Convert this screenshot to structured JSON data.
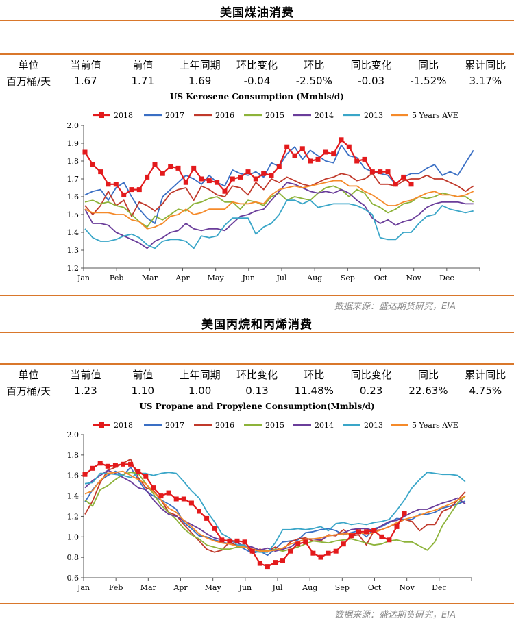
{
  "sections": [
    {
      "title": "美国煤油消费",
      "stats": {
        "headers": [
          "单位",
          "当前值",
          "前值",
          "上年同期",
          "环比变化",
          "环比",
          "同比变化",
          "同比",
          "累计同比"
        ],
        "values": [
          "百万桶/天",
          "1.67",
          "1.71",
          "1.69",
          "-0.04",
          "-2.50%",
          "-0.03",
          "-1.52%",
          "3.17%"
        ]
      },
      "source": "数据来源：盛达期货研究，EIA"
    },
    {
      "title": "美国丙烷和丙烯消费",
      "stats": {
        "headers": [
          "单位",
          "当前值",
          "前值",
          "上年同期",
          "环比变化",
          "环比",
          "同比变化",
          "同比",
          "累计同比"
        ],
        "values": [
          "百万桶/天",
          "1.23",
          "1.10",
          "1.00",
          "0.13",
          "11.48%",
          "0.23",
          "22.63%",
          "4.75%"
        ]
      },
      "source": "数据来源：盛达期货研究，EIA"
    }
  ],
  "colors": {
    "accent": "#d9772b",
    "2018": "#e31a1c",
    "2017": "#3a6fc4",
    "2016": "#c0392b",
    "2015": "#8db33a",
    "2014": "#6a3d9a",
    "2013": "#3aa6c8",
    "ave": "#f58a2a"
  },
  "chart_data": [
    {
      "type": "line",
      "title": "US Kerosene Consumption (Mmbls/d)",
      "x_ticks": [
        "Jan",
        "Feb",
        "Mar",
        "Apr",
        "May",
        "Jun",
        "Jul",
        "Aug",
        "Sep",
        "Oct",
        "Nov",
        "Dec"
      ],
      "ylim": [
        1.2,
        2.0
      ],
      "y_ticks": [
        "1.2",
        "1.3",
        "1.4",
        "1.5",
        "1.6",
        "1.7",
        "1.8",
        "1.9",
        "2.0"
      ],
      "grid": false,
      "legend": "top",
      "series": [
        {
          "name": "2018",
          "markers": true,
          "values": [
            1.85,
            1.78,
            1.74,
            1.67,
            1.67,
            1.61,
            1.64,
            1.64,
            1.71,
            1.78,
            1.73,
            1.77,
            1.76,
            1.68,
            1.76,
            1.7,
            1.69,
            1.68,
            1.63,
            1.7,
            1.71,
            1.74,
            1.7,
            1.73,
            1.72,
            1.77,
            1.88,
            1.83,
            1.87,
            1.8,
            1.81,
            1.85,
            1.84,
            1.92,
            1.88,
            1.8,
            1.81,
            1.74,
            1.74,
            1.74,
            1.67,
            1.71,
            1.67
          ]
        },
        {
          "name": "2017",
          "values": [
            1.61,
            1.63,
            1.64,
            1.58,
            1.65,
            1.68,
            1.6,
            1.53,
            1.48,
            1.45,
            1.6,
            1.64,
            1.68,
            1.72,
            1.7,
            1.67,
            1.72,
            1.68,
            1.66,
            1.75,
            1.73,
            1.72,
            1.74,
            1.71,
            1.79,
            1.77,
            1.84,
            1.88,
            1.81,
            1.86,
            1.83,
            1.8,
            1.79,
            1.89,
            1.83,
            1.82,
            1.76,
            1.74,
            1.73,
            1.72,
            1.67,
            1.71,
            1.73,
            1.73,
            1.76,
            1.78,
            1.72,
            1.74,
            1.72,
            1.79,
            1.86
          ]
        },
        {
          "name": "2016",
          "values": [
            1.55,
            1.5,
            1.55,
            1.63,
            1.55,
            1.58,
            1.49,
            1.57,
            1.55,
            1.52,
            1.56,
            1.62,
            1.64,
            1.65,
            1.58,
            1.66,
            1.64,
            1.61,
            1.6,
            1.66,
            1.65,
            1.61,
            1.68,
            1.64,
            1.7,
            1.68,
            1.71,
            1.69,
            1.67,
            1.66,
            1.68,
            1.7,
            1.71,
            1.73,
            1.72,
            1.69,
            1.7,
            1.73,
            1.67,
            1.67,
            1.66,
            1.69,
            1.7,
            1.7,
            1.72,
            1.7,
            1.7,
            1.68,
            1.66,
            1.63,
            1.66
          ]
        },
        {
          "name": "2015",
          "values": [
            1.57,
            1.58,
            1.56,
            1.57,
            1.55,
            1.54,
            1.5,
            1.46,
            1.43,
            1.49,
            1.47,
            1.5,
            1.53,
            1.52,
            1.56,
            1.57,
            1.59,
            1.6,
            1.57,
            1.57,
            1.53,
            1.58,
            1.57,
            1.55,
            1.6,
            1.62,
            1.58,
            1.6,
            1.59,
            1.58,
            1.62,
            1.65,
            1.66,
            1.64,
            1.6,
            1.64,
            1.62,
            1.56,
            1.54,
            1.51,
            1.53,
            1.56,
            1.57,
            1.6,
            1.59,
            1.6,
            1.62,
            1.61,
            1.6,
            1.6,
            1.57
          ]
        },
        {
          "name": "2014",
          "values": [
            1.53,
            1.45,
            1.45,
            1.44,
            1.4,
            1.38,
            1.36,
            1.34,
            1.31,
            1.35,
            1.37,
            1.4,
            1.41,
            1.45,
            1.42,
            1.41,
            1.42,
            1.42,
            1.41,
            1.45,
            1.49,
            1.5,
            1.52,
            1.53,
            1.58,
            1.63,
            1.68,
            1.67,
            1.65,
            1.63,
            1.62,
            1.63,
            1.62,
            1.64,
            1.62,
            1.58,
            1.55,
            1.48,
            1.45,
            1.47,
            1.44,
            1.46,
            1.47,
            1.5,
            1.54,
            1.56,
            1.57,
            1.57,
            1.57,
            1.56,
            1.56
          ]
        },
        {
          "name": "2013",
          "values": [
            1.42,
            1.37,
            1.35,
            1.35,
            1.36,
            1.38,
            1.39,
            1.37,
            1.33,
            1.31,
            1.35,
            1.36,
            1.36,
            1.35,
            1.31,
            1.38,
            1.37,
            1.38,
            1.44,
            1.48,
            1.48,
            1.48,
            1.39,
            1.43,
            1.45,
            1.5,
            1.58,
            1.58,
            1.56,
            1.58,
            1.54,
            1.55,
            1.56,
            1.56,
            1.56,
            1.55,
            1.53,
            1.5,
            1.37,
            1.36,
            1.36,
            1.4,
            1.4,
            1.45,
            1.49,
            1.5,
            1.55,
            1.53,
            1.52,
            1.51,
            1.52
          ]
        },
        {
          "name": "5 Years AVE",
          "values": [
            1.53,
            1.51,
            1.51,
            1.51,
            1.5,
            1.5,
            1.47,
            1.46,
            1.42,
            1.43,
            1.45,
            1.49,
            1.5,
            1.53,
            1.5,
            1.51,
            1.53,
            1.53,
            1.53,
            1.57,
            1.56,
            1.56,
            1.57,
            1.56,
            1.61,
            1.64,
            1.65,
            1.66,
            1.65,
            1.66,
            1.67,
            1.68,
            1.69,
            1.69,
            1.66,
            1.66,
            1.63,
            1.61,
            1.58,
            1.55,
            1.55,
            1.57,
            1.58,
            1.6,
            1.62,
            1.63,
            1.61,
            1.61,
            1.6,
            1.61,
            1.63
          ]
        }
      ]
    },
    {
      "type": "line",
      "title": "US Propane and Propylene Consumption(Mmbls/d)",
      "x_ticks": [
        "Jan",
        "Feb",
        "Mar",
        "Apr",
        "May",
        "Jun",
        "Jul",
        "Aug",
        "Sep",
        "Oct",
        "Nov",
        "Dec"
      ],
      "ylim": [
        0.6,
        2.0
      ],
      "y_ticks": [
        "0.6",
        "0.8",
        "1.0",
        "1.2",
        "1.4",
        "1.6",
        "1.8",
        "2.0"
      ],
      "grid": false,
      "legend": "top",
      "series": [
        {
          "name": "2018",
          "markers": true,
          "values": [
            1.61,
            1.67,
            1.72,
            1.69,
            1.7,
            1.71,
            1.71,
            1.64,
            1.59,
            1.48,
            1.4,
            1.43,
            1.37,
            1.37,
            1.33,
            1.25,
            1.18,
            1.08,
            0.97,
            0.96,
            0.96,
            0.95,
            0.86,
            0.74,
            0.71,
            0.75,
            0.77,
            0.86,
            0.93,
            0.95,
            0.84,
            0.8,
            0.84,
            0.86,
            0.93,
            1.01,
            1.05,
            1.05,
            1.06,
            1.0,
            0.97,
            1.1,
            1.23
          ]
        },
        {
          "name": "2017",
          "values": [
            1.34,
            1.46,
            1.55,
            1.6,
            1.64,
            1.6,
            1.68,
            1.56,
            1.45,
            1.4,
            1.36,
            1.32,
            1.27,
            1.14,
            1.08,
            1.01,
            1.0,
            0.97,
            0.95,
            0.93,
            0.92,
            0.88,
            0.84,
            0.86,
            0.82,
            0.88,
            0.95,
            0.96,
            0.97,
            1.04,
            1.05,
            1.07,
            1.08,
            1.06,
            1.02,
            1.04,
            1.06,
            1.0,
            1.08,
            1.1,
            1.14,
            1.18,
            1.17,
            1.17,
            1.22,
            1.22,
            1.24,
            1.28,
            1.3,
            1.32,
            1.35
          ]
        },
        {
          "name": "2016",
          "values": [
            1.22,
            1.35,
            1.53,
            1.65,
            1.68,
            1.72,
            1.76,
            1.58,
            1.48,
            1.45,
            1.36,
            1.24,
            1.21,
            1.12,
            1.04,
            0.96,
            0.88,
            0.85,
            0.87,
            0.95,
            0.91,
            0.92,
            0.84,
            0.88,
            0.86,
            0.9,
            0.87,
            0.95,
            0.98,
            0.99,
            0.96,
            0.96,
            1.02,
            1.01,
            1.07,
            1.01,
            1.02,
            0.92,
            1.06,
            1.07,
            1.1,
            1.13,
            1.17,
            1.15,
            1.06,
            1.12,
            1.12,
            1.25,
            1.28,
            1.36,
            1.44
          ]
        },
        {
          "name": "2015",
          "values": [
            1.36,
            1.3,
            1.46,
            1.5,
            1.56,
            1.61,
            1.63,
            1.62,
            1.52,
            1.42,
            1.31,
            1.24,
            1.17,
            1.08,
            1.02,
            0.98,
            0.92,
            0.9,
            0.88,
            0.88,
            0.9,
            0.9,
            0.88,
            0.87,
            0.86,
            0.88,
            0.86,
            0.88,
            0.9,
            0.93,
            0.96,
            0.95,
            0.94,
            0.96,
            0.97,
            0.98,
            0.96,
            0.94,
            0.92,
            0.93,
            0.96,
            0.97,
            0.95,
            0.95,
            0.91,
            0.87,
            0.95,
            1.11,
            1.22,
            1.33,
            1.4
          ]
        },
        {
          "name": "2014",
          "values": [
            1.48,
            1.55,
            1.6,
            1.65,
            1.62,
            1.58,
            1.54,
            1.48,
            1.46,
            1.36,
            1.28,
            1.22,
            1.2,
            1.16,
            1.12,
            1.08,
            1.03,
            0.99,
            0.97,
            0.96,
            0.94,
            0.91,
            0.9,
            0.87,
            0.89,
            0.86,
            0.88,
            0.9,
            0.95,
            0.98,
            0.98,
            0.97,
            1.01,
            1.02,
            1.04,
            1.07,
            1.08,
            1.08,
            1.06,
            1.11,
            1.15,
            1.16,
            1.2,
            1.24,
            1.27,
            1.27,
            1.3,
            1.33,
            1.35,
            1.38,
            1.32
          ]
        },
        {
          "name": "2013",
          "values": [
            1.52,
            1.53,
            1.62,
            1.62,
            1.61,
            1.6,
            1.58,
            1.62,
            1.62,
            1.6,
            1.62,
            1.63,
            1.62,
            1.54,
            1.45,
            1.38,
            1.25,
            1.15,
            1.03,
            0.99,
            0.92,
            0.92,
            0.86,
            0.85,
            0.85,
            0.94,
            1.07,
            1.07,
            1.08,
            1.07,
            1.08,
            1.1,
            1.06,
            1.13,
            1.14,
            1.12,
            1.13,
            1.12,
            1.14,
            1.15,
            1.17,
            1.26,
            1.36,
            1.48,
            1.56,
            1.63,
            1.62,
            1.61,
            1.61,
            1.6,
            1.54
          ]
        },
        {
          "name": "5 Years AVE",
          "values": [
            1.42,
            1.45,
            1.55,
            1.62,
            1.63,
            1.64,
            1.6,
            1.56,
            1.52,
            1.44,
            1.36,
            1.28,
            1.24,
            1.16,
            1.1,
            1.03,
            0.99,
            0.96,
            0.94,
            0.93,
            0.91,
            0.9,
            0.88,
            0.86,
            0.86,
            0.87,
            0.89,
            0.93,
            0.95,
            0.98,
            0.98,
            0.99,
            1.01,
            1.02,
            1.03,
            1.03,
            1.04,
            1.03,
            1.04,
            1.07,
            1.1,
            1.14,
            1.17,
            1.19,
            1.21,
            1.24,
            1.26,
            1.29,
            1.32,
            1.36,
            1.4
          ]
        }
      ]
    }
  ]
}
